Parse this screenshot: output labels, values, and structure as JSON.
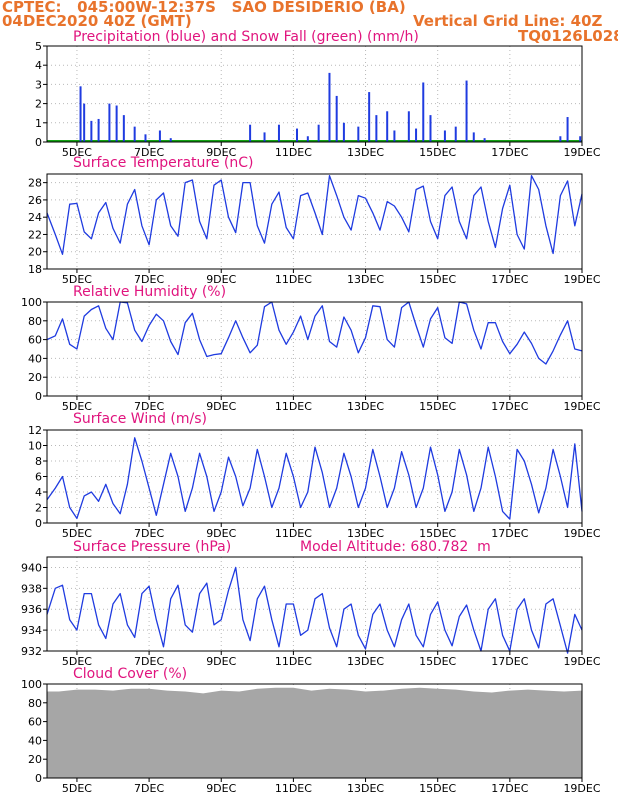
{
  "header": {
    "line1": "CPTEC:   045:00W-12:37S   SAO DESIDERIO (BA)",
    "line2": "04DEC2020 40Z (GMT)",
    "vgrid": "Vertical Grid Line: 40Z",
    "code": "TQ0126L028"
  },
  "x_axis": {
    "ticks": [
      "5DEC",
      "7DEC",
      "9DEC",
      "11DEC",
      "13DEC",
      "15DEC",
      "17DEC",
      "19DEC"
    ],
    "tick_days": [
      5,
      7,
      9,
      11,
      13,
      15,
      17,
      19
    ],
    "start_day": 4.17,
    "end_day": 19.0
  },
  "colors": {
    "line": "#1f3be0",
    "precip": "#1f3be0",
    "snow": "#13a313",
    "cloud": "#a6a6a6",
    "title": "#e0147e",
    "header": "#e8732c"
  },
  "chart_data": [
    {
      "type": "bar",
      "title": "Precipitation (blue) and Snow Fall (green) (mm/h)",
      "ylim": [
        0,
        5
      ],
      "yticks": [
        "0",
        "1",
        "2",
        "3",
        "4",
        "5"
      ],
      "grid": true,
      "series": [
        {
          "name": "Precipitation",
          "points": [
            [
              5.1,
              2.9
            ],
            [
              5.2,
              2.0
            ],
            [
              5.4,
              1.1
            ],
            [
              5.6,
              1.2
            ],
            [
              5.9,
              2.0
            ],
            [
              6.1,
              1.9
            ],
            [
              6.3,
              1.4
            ],
            [
              6.6,
              0.8
            ],
            [
              6.9,
              0.4
            ],
            [
              7.3,
              0.6
            ],
            [
              7.6,
              0.2
            ],
            [
              9.8,
              0.9
            ],
            [
              10.2,
              0.5
            ],
            [
              10.6,
              0.9
            ],
            [
              11.1,
              0.7
            ],
            [
              11.4,
              0.3
            ],
            [
              11.7,
              0.9
            ],
            [
              12.0,
              3.6
            ],
            [
              12.2,
              2.4
            ],
            [
              12.4,
              1.0
            ],
            [
              12.8,
              0.8
            ],
            [
              13.1,
              2.6
            ],
            [
              13.3,
              1.4
            ],
            [
              13.6,
              1.6
            ],
            [
              13.8,
              0.6
            ],
            [
              14.2,
              1.6
            ],
            [
              14.4,
              0.7
            ],
            [
              14.6,
              3.1
            ],
            [
              14.8,
              1.4
            ],
            [
              15.2,
              0.6
            ],
            [
              15.5,
              0.8
            ],
            [
              15.8,
              3.2
            ],
            [
              16.0,
              0.5
            ],
            [
              16.3,
              0.2
            ],
            [
              18.4,
              0.3
            ],
            [
              18.6,
              1.3
            ],
            [
              18.95,
              0.3
            ]
          ]
        },
        {
          "name": "Snow Fall",
          "points": []
        }
      ]
    },
    {
      "type": "line",
      "title": "Surface Temperature (nC)",
      "ylim": [
        18,
        29
      ],
      "yticks": [
        "18",
        "20",
        "22",
        "24",
        "26",
        "28"
      ],
      "grid": true,
      "x": [
        4.17,
        4.4,
        4.6,
        4.8,
        5.0,
        5.2,
        5.4,
        5.6,
        5.8,
        6.0,
        6.2,
        6.4,
        6.6,
        6.8,
        7.0,
        7.2,
        7.4,
        7.6,
        7.8,
        8.0,
        8.2,
        8.4,
        8.6,
        8.8,
        9.0,
        9.2,
        9.4,
        9.6,
        9.8,
        10.0,
        10.2,
        10.4,
        10.6,
        10.8,
        11.0,
        11.2,
        11.4,
        11.6,
        11.8,
        12.0,
        12.2,
        12.4,
        12.6,
        12.8,
        13.0,
        13.2,
        13.4,
        13.6,
        13.8,
        14.0,
        14.2,
        14.4,
        14.6,
        14.8,
        15.0,
        15.2,
        15.4,
        15.6,
        15.8,
        16.0,
        16.2,
        16.4,
        16.6,
        16.8,
        17.0,
        17.2,
        17.4,
        17.6,
        17.8,
        18.0,
        18.2,
        18.4,
        18.6,
        18.8,
        19.0
      ],
      "y": [
        24.5,
        22,
        19.7,
        25.5,
        25.6,
        22.3,
        21.5,
        24.5,
        25.7,
        22.7,
        21,
        25.5,
        27.2,
        23,
        20.8,
        26,
        26.8,
        23,
        21.8,
        28,
        28.3,
        23.5,
        21.5,
        27.7,
        28.3,
        24,
        22.2,
        28,
        28,
        23,
        21,
        25.5,
        26.9,
        22.8,
        21.5,
        26.5,
        26.8,
        24.5,
        22,
        28.8,
        26.5,
        24,
        22.5,
        26.5,
        26.2,
        24.5,
        22.5,
        25.8,
        25.3,
        24,
        22.3,
        27.2,
        27.6,
        23.5,
        21.5,
        26.5,
        27.5,
        23.5,
        21.5,
        26.5,
        27.5,
        23.5,
        20.5,
        25,
        27.7,
        22,
        20.3,
        28.8,
        27.2,
        23,
        19.8,
        26.5,
        28.2,
        23,
        26.7
      ]
    },
    {
      "type": "line",
      "title": "Relative Humidity (%)",
      "ylim": [
        0,
        100
      ],
      "yticks": [
        "0",
        "20",
        "40",
        "60",
        "80",
        "100"
      ],
      "grid": true,
      "x": [
        4.17,
        4.4,
        4.6,
        4.8,
        5.0,
        5.2,
        5.4,
        5.6,
        5.8,
        6.0,
        6.2,
        6.4,
        6.6,
        6.8,
        7.0,
        7.2,
        7.4,
        7.6,
        7.8,
        8.0,
        8.2,
        8.4,
        8.6,
        8.8,
        9.0,
        9.2,
        9.4,
        9.6,
        9.8,
        10.0,
        10.2,
        10.4,
        10.6,
        10.8,
        11.0,
        11.2,
        11.4,
        11.6,
        11.8,
        12.0,
        12.2,
        12.4,
        12.6,
        12.8,
        13.0,
        13.2,
        13.4,
        13.6,
        13.8,
        14.0,
        14.2,
        14.4,
        14.6,
        14.8,
        15.0,
        15.2,
        15.4,
        15.6,
        15.8,
        16.0,
        16.2,
        16.4,
        16.6,
        16.8,
        17.0,
        17.2,
        17.4,
        17.6,
        17.8,
        18.0,
        18.2,
        18.4,
        18.6,
        18.8,
        19.0
      ],
      "y": [
        60,
        64,
        82,
        55,
        50,
        85,
        92,
        96,
        72,
        60,
        100,
        99,
        70,
        58,
        75,
        87,
        80,
        58,
        44,
        78,
        88,
        60,
        42,
        44,
        45,
        62,
        80,
        62,
        46,
        54,
        95,
        100,
        70,
        55,
        68,
        85,
        60,
        85,
        96,
        58,
        52,
        84,
        70,
        46,
        62,
        96,
        95,
        60,
        52,
        94,
        100,
        75,
        52,
        82,
        94,
        62,
        56,
        100,
        98,
        70,
        50,
        78,
        78,
        58,
        45,
        55,
        68,
        56,
        40,
        34,
        48,
        65,
        80,
        50,
        48
      ]
    },
    {
      "type": "line",
      "title": "Surface Wind (m/s)",
      "ylim": [
        0,
        12
      ],
      "yticks": [
        "0",
        "2",
        "4",
        "6",
        "8",
        "10",
        "12"
      ],
      "grid": true,
      "x": [
        4.17,
        4.4,
        4.6,
        4.8,
        5.0,
        5.2,
        5.4,
        5.6,
        5.8,
        6.0,
        6.2,
        6.4,
        6.6,
        6.8,
        7.0,
        7.2,
        7.4,
        7.6,
        7.8,
        8.0,
        8.2,
        8.4,
        8.6,
        8.8,
        9.0,
        9.2,
        9.4,
        9.6,
        9.8,
        10.0,
        10.2,
        10.4,
        10.6,
        10.8,
        11.0,
        11.2,
        11.4,
        11.6,
        11.8,
        12.0,
        12.2,
        12.4,
        12.6,
        12.8,
        13.0,
        13.2,
        13.4,
        13.6,
        13.8,
        14.0,
        14.2,
        14.4,
        14.6,
        14.8,
        15.0,
        15.2,
        15.4,
        15.6,
        15.8,
        16.0,
        16.2,
        16.4,
        16.6,
        16.8,
        17.0,
        17.2,
        17.4,
        17.6,
        17.8,
        18.0,
        18.2,
        18.4,
        18.6,
        18.8,
        19.0
      ],
      "y": [
        3,
        4.5,
        6,
        2,
        0.6,
        3.5,
        4,
        2.8,
        5,
        2.5,
        1.2,
        5,
        11,
        8,
        4.5,
        1,
        5,
        9,
        6,
        1.5,
        4.5,
        9,
        6,
        1.5,
        4,
        8.5,
        6,
        2.2,
        4.5,
        9.5,
        6,
        2,
        4.5,
        9,
        6,
        2,
        4,
        9.8,
        6.5,
        2,
        4.5,
        9,
        6,
        2,
        4.5,
        9.5,
        6,
        2,
        4.5,
        9.2,
        6.2,
        2,
        4.5,
        9.8,
        6.2,
        1.5,
        4,
        9.5,
        6.2,
        1.5,
        4.5,
        9.8,
        6,
        1.5,
        0.5,
        9.5,
        8,
        5,
        1.3,
        4.5,
        9.5,
        6,
        2,
        10.2,
        1.5
      ]
    },
    {
      "type": "line",
      "title": "Surface Pressure (hPa)",
      "subtitle": "Model Altitude: 680.782  m",
      "ylim": [
        932,
        941
      ],
      "yticks": [
        "932",
        "934",
        "936",
        "938",
        "940"
      ],
      "grid": true,
      "x": [
        4.17,
        4.4,
        4.6,
        4.8,
        5.0,
        5.2,
        5.4,
        5.6,
        5.8,
        6.0,
        6.2,
        6.4,
        6.6,
        6.8,
        7.0,
        7.2,
        7.4,
        7.6,
        7.8,
        8.0,
        8.2,
        8.4,
        8.6,
        8.8,
        9.0,
        9.2,
        9.4,
        9.6,
        9.8,
        10.0,
        10.2,
        10.4,
        10.6,
        10.8,
        11.0,
        11.2,
        11.4,
        11.6,
        11.8,
        12.0,
        12.2,
        12.4,
        12.6,
        12.8,
        13.0,
        13.2,
        13.4,
        13.6,
        13.8,
        14.0,
        14.2,
        14.4,
        14.6,
        14.8,
        15.0,
        15.2,
        15.4,
        15.6,
        15.8,
        16.0,
        16.2,
        16.4,
        16.6,
        16.8,
        17.0,
        17.2,
        17.4,
        17.6,
        17.8,
        18.0,
        18.2,
        18.4,
        18.6,
        18.8,
        19.0
      ],
      "y": [
        935.5,
        938,
        938.3,
        935,
        934,
        937.5,
        937.5,
        934.5,
        933.2,
        936.5,
        937.5,
        934.5,
        933.3,
        937.5,
        938.2,
        935,
        932.4,
        937,
        938.3,
        934.5,
        933.8,
        937.5,
        938.5,
        934.5,
        935,
        937.8,
        940,
        935,
        933,
        937,
        938.2,
        935,
        932.4,
        936.5,
        936.5,
        933.5,
        934,
        937,
        937.5,
        934.2,
        932.4,
        936,
        936.5,
        933.5,
        932.2,
        935.5,
        936.5,
        934,
        932.4,
        935,
        936.5,
        933.5,
        932.4,
        935.5,
        936.7,
        934,
        932.5,
        935.3,
        936.4,
        934,
        932,
        936,
        937,
        933.5,
        932,
        936,
        937,
        934,
        932.3,
        936.5,
        937,
        934.4,
        931.8,
        935.5,
        934
      ]
    },
    {
      "type": "area",
      "title": "Cloud Cover (%)",
      "ylim": [
        0,
        100
      ],
      "yticks": [
        "0",
        "20",
        "40",
        "60",
        "80",
        "100"
      ],
      "grid": true,
      "x": [
        4.17,
        4.5,
        5.0,
        5.5,
        6.0,
        6.5,
        7.0,
        7.5,
        8.0,
        8.5,
        9.0,
        9.5,
        10.0,
        10.5,
        11.0,
        11.5,
        12.0,
        12.5,
        13.0,
        13.5,
        14.0,
        14.5,
        15.0,
        15.5,
        16.0,
        16.5,
        17.0,
        17.5,
        18.0,
        18.5,
        19.0
      ],
      "y": [
        92,
        92,
        94,
        94,
        93,
        95,
        95,
        93,
        92,
        90,
        93,
        92,
        95,
        96,
        96,
        93,
        95,
        94,
        92,
        93,
        95,
        96,
        95,
        94,
        92,
        91,
        93,
        94,
        93,
        92,
        93
      ]
    }
  ]
}
